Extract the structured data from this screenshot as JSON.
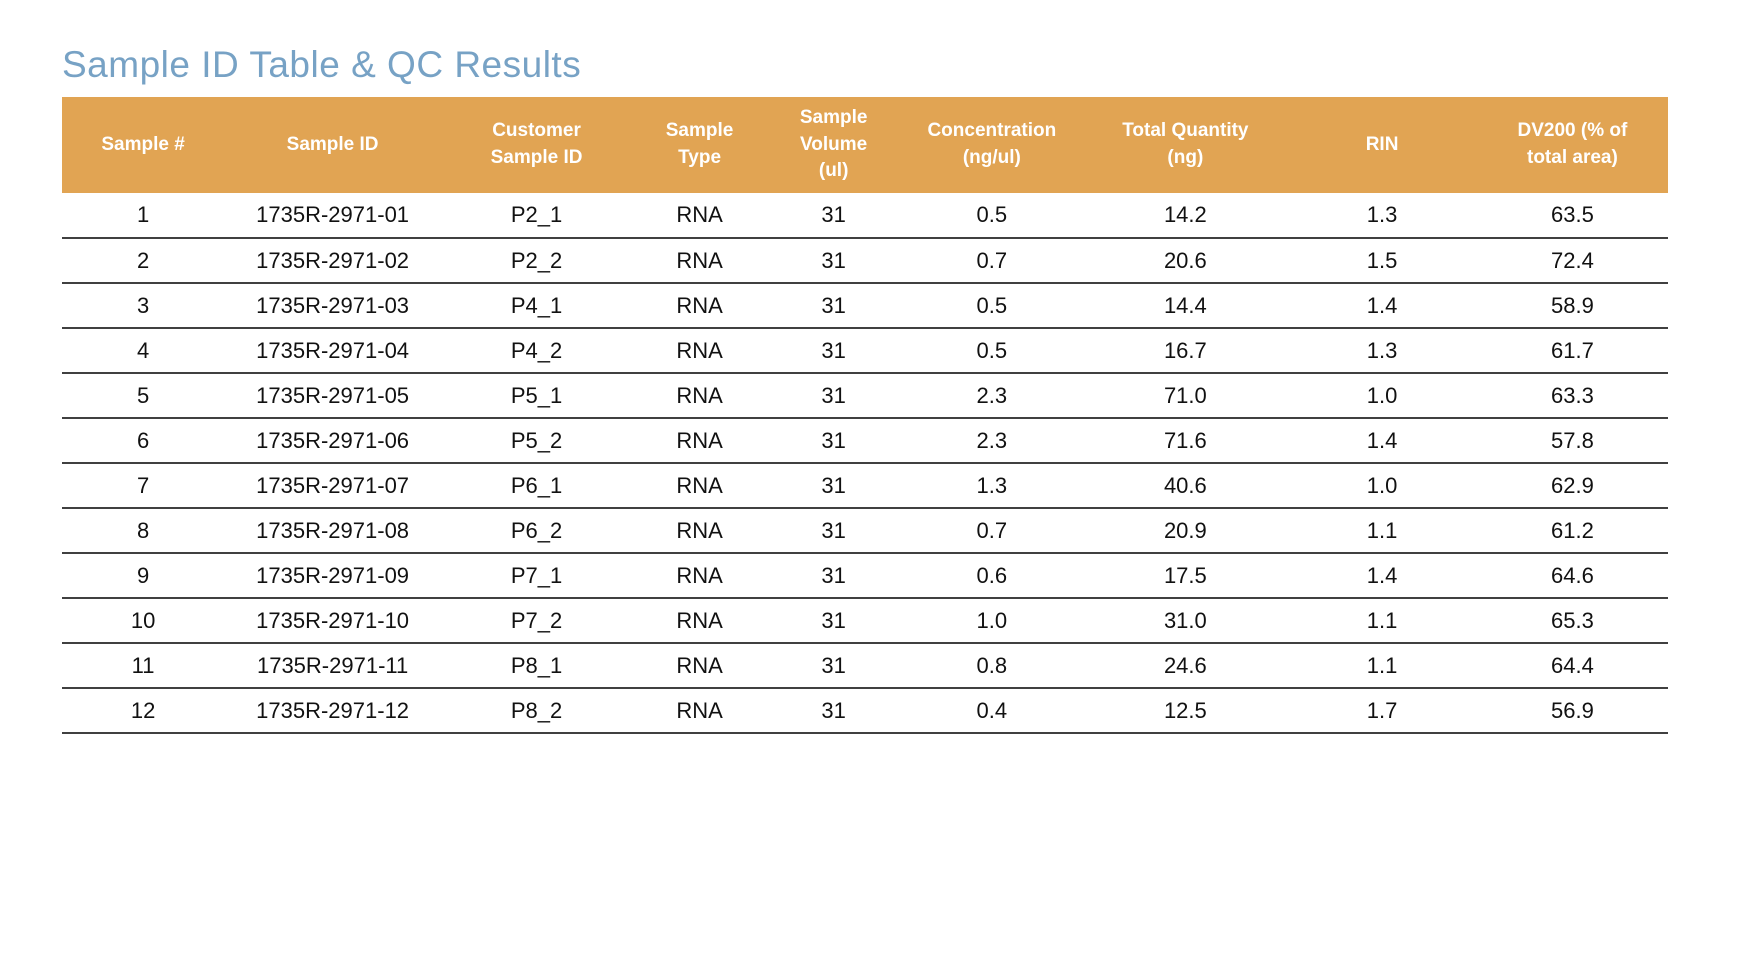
{
  "page": {
    "title": "Sample ID Table & QC Results"
  },
  "colors": {
    "header_bg": "#E1A453",
    "title": "#77A2C5",
    "row_line": "#404040"
  },
  "table": {
    "headers": [
      "Sample #",
      "Sample ID",
      "Customer\nSample ID",
      "Sample\nType",
      "Sample\nVolume\n(ul)",
      "Concentration\n(ng/ul)",
      "Total Quantity\n(ng)",
      "RIN",
      "DV200 (% of\ntotal area)"
    ],
    "rows": [
      [
        "1",
        "1735R-2971-01",
        "P2_1",
        "RNA",
        "31",
        "0.5",
        "14.2",
        "1.3",
        "63.5"
      ],
      [
        "2",
        "1735R-2971-02",
        "P2_2",
        "RNA",
        "31",
        "0.7",
        "20.6",
        "1.5",
        "72.4"
      ],
      [
        "3",
        "1735R-2971-03",
        "P4_1",
        "RNA",
        "31",
        "0.5",
        "14.4",
        "1.4",
        "58.9"
      ],
      [
        "4",
        "1735R-2971-04",
        "P4_2",
        "RNA",
        "31",
        "0.5",
        "16.7",
        "1.3",
        "61.7"
      ],
      [
        "5",
        "1735R-2971-05",
        "P5_1",
        "RNA",
        "31",
        "2.3",
        "71.0",
        "1.0",
        "63.3"
      ],
      [
        "6",
        "1735R-2971-06",
        "P5_2",
        "RNA",
        "31",
        "2.3",
        "71.6",
        "1.4",
        "57.8"
      ],
      [
        "7",
        "1735R-2971-07",
        "P6_1",
        "RNA",
        "31",
        "1.3",
        "40.6",
        "1.0",
        "62.9"
      ],
      [
        "8",
        "1735R-2971-08",
        "P6_2",
        "RNA",
        "31",
        "0.7",
        "20.9",
        "1.1",
        "61.2"
      ],
      [
        "9",
        "1735R-2971-09",
        "P7_1",
        "RNA",
        "31",
        "0.6",
        "17.5",
        "1.4",
        "64.6"
      ],
      [
        "10",
        "1735R-2971-10",
        "P7_2",
        "RNA",
        "31",
        "1.0",
        "31.0",
        "1.1",
        "65.3"
      ],
      [
        "11",
        "1735R-2971-11",
        "P8_1",
        "RNA",
        "31",
        "0.8",
        "24.6",
        "1.1",
        "64.4"
      ],
      [
        "12",
        "1735R-2971-12",
        "P8_2",
        "RNA",
        "31",
        "0.4",
        "12.5",
        "1.7",
        "56.9"
      ]
    ]
  }
}
